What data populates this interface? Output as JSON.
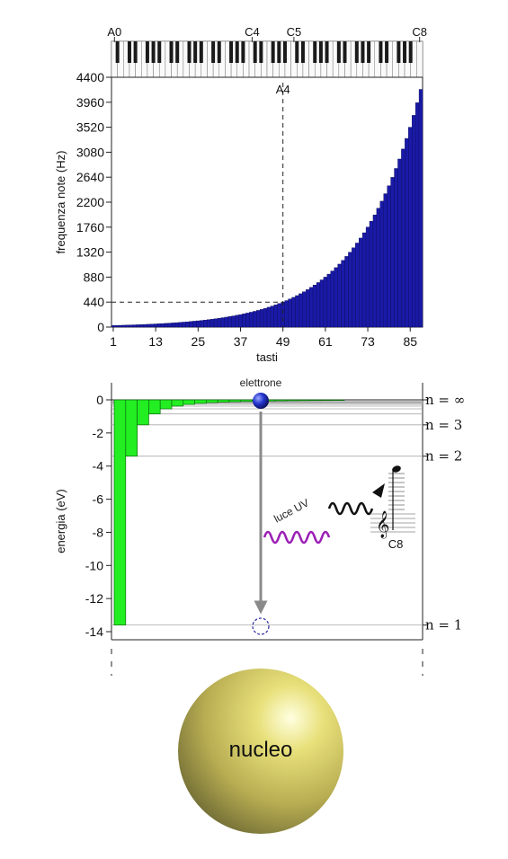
{
  "chart_data": [
    {
      "type": "bar",
      "x_start": 1,
      "x_end": 88,
      "frequency_rule": "440 * 2^((n-49)/12)",
      "xlabel": "tasti",
      "ylabel": "frequenza note (Hz)",
      "xlim": [
        0.5,
        88.5
      ],
      "ylim": [
        0,
        4400
      ],
      "xticks": [
        "1",
        "13",
        "25",
        "37",
        "49",
        "61",
        "73",
        "85"
      ],
      "yticks": [
        "0",
        "440",
        "880",
        "1320",
        "1760",
        "2200",
        "2640",
        "3080",
        "3520",
        "3960",
        "4400"
      ],
      "bar_color": "#1a1aa8",
      "reference": {
        "key": 49,
        "value": 440,
        "label": "A4"
      },
      "keyboard_labels": [
        "A0",
        "C4",
        "C5",
        "C8"
      ]
    },
    {
      "type": "bar",
      "values": [
        -13.6,
        -3.4,
        -1.51,
        -0.85,
        -0.544,
        -0.378,
        -0.278,
        -0.213,
        -0.168,
        -0.136,
        -0.112,
        -0.094,
        -0.08,
        -0.069,
        -0.06,
        -0.053,
        -0.047,
        -0.042,
        -0.038,
        -0.034
      ],
      "ylabel": "energia (eV)",
      "ylim": [
        -15,
        0
      ],
      "yticks": [
        "0",
        "-2",
        "-4",
        "-6",
        "-8",
        "-10",
        "-12",
        "-14"
      ],
      "bar_color": "#22ee22",
      "levels": [
        {
          "label": "n = ∞",
          "energy": 0
        },
        {
          "label": "n = 3",
          "energy": -1.51
        },
        {
          "label": "n = 2",
          "energy": -3.4
        },
        {
          "label": "n = 1",
          "energy": -13.6
        }
      ],
      "annotations": {
        "electron": "elettrone",
        "light": "luce UV",
        "note": "C8",
        "nucleus": "nucleo"
      }
    }
  ],
  "colors": {
    "green": "#22ee22",
    "blue": "#1a1aa8",
    "purple": "#9b1fb5",
    "gray_arrow": "#8a8a8a"
  }
}
